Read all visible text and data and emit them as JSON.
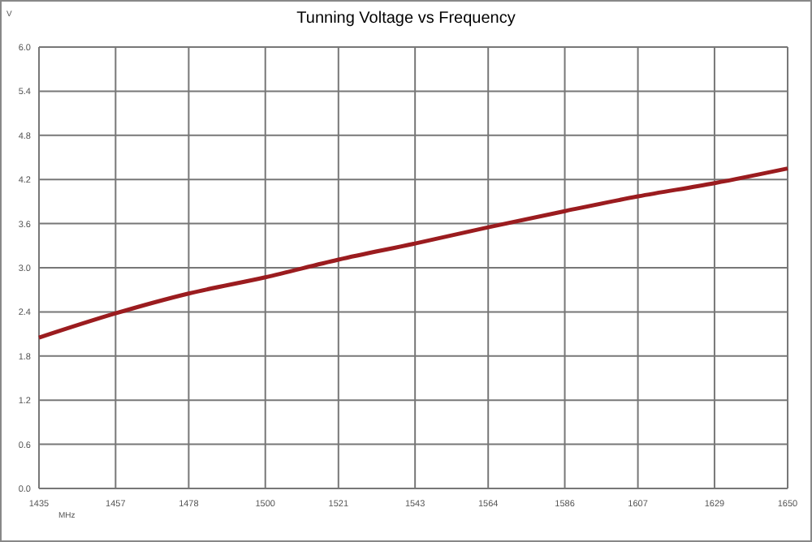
{
  "chart_data": {
    "type": "line",
    "title": "Tunning Voltage vs Frequency",
    "xlabel": "MHz",
    "ylabel": "V",
    "x": [
      1435,
      1457,
      1478,
      1500,
      1521,
      1543,
      1564,
      1586,
      1607,
      1629,
      1650
    ],
    "series": [
      {
        "color": "#9b1c1f",
        "values": [
          2.05,
          2.38,
          2.65,
          2.87,
          3.11,
          3.33,
          3.55,
          3.77,
          3.97,
          4.15,
          4.35
        ]
      }
    ],
    "xlim": [
      1435,
      1650
    ],
    "xticks": [
      1435,
      1457,
      1478,
      1500,
      1521,
      1543,
      1564,
      1586,
      1607,
      1629,
      1650
    ],
    "ylim": [
      0,
      6
    ],
    "yticks": [
      {
        "value": 0,
        "label": "0.0"
      },
      {
        "value": 0.6,
        "label": "0.6"
      },
      {
        "value": 1.2,
        "label": "1.2"
      },
      {
        "value": 1.8,
        "label": "1.8"
      },
      {
        "value": 2.4,
        "label": "2.4"
      },
      {
        "value": 3,
        "label": "3.0"
      },
      {
        "value": 3.6,
        "label": "3.6"
      },
      {
        "value": 4.2,
        "label": "4.2"
      },
      {
        "value": 4.8,
        "label": "4.8"
      },
      {
        "value": 5.4,
        "label": "5.4"
      },
      {
        "value": 6,
        "label": "6.0"
      }
    ],
    "grid": true,
    "marker": "none",
    "line_style": "solid"
  }
}
